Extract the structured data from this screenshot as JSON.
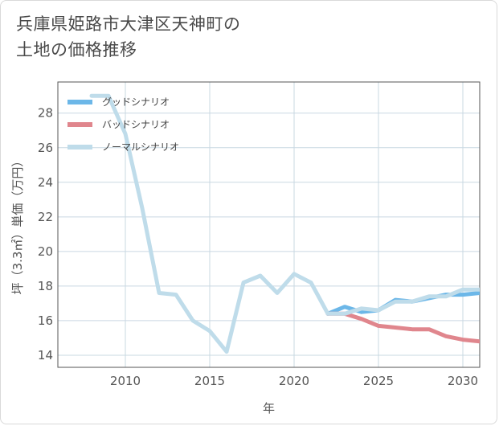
{
  "title_line1": "兵庫県姫路市大津区天神町の",
  "title_line2": "土地の価格推移",
  "chart_data": {
    "type": "line",
    "title": "兵庫県姫路市大津区天神町の土地の価格推移",
    "xlabel": "年",
    "ylabel": "坪（3.3㎡）単価（万円）",
    "xlim": [
      2006,
      2031
    ],
    "ylim": [
      13.3,
      29.8
    ],
    "xticks": [
      2010,
      2015,
      2020,
      2025,
      2030
    ],
    "yticks": [
      14,
      16,
      18,
      20,
      22,
      24,
      26,
      28
    ],
    "legend_position": "top-left",
    "series": [
      {
        "name": "グッドシナリオ",
        "color": "#6cb7e8",
        "x": [
          2022,
          2023,
          2024,
          2025,
          2026,
          2027,
          2028,
          2029,
          2030,
          2031
        ],
        "values": [
          16.4,
          16.8,
          16.5,
          16.6,
          17.2,
          17.1,
          17.3,
          17.5,
          17.5,
          17.6
        ]
      },
      {
        "name": "バッドシナリオ",
        "color": "#e0868d",
        "x": [
          2022,
          2023,
          2024,
          2025,
          2026,
          2027,
          2028,
          2029,
          2030,
          2031
        ],
        "values": [
          16.4,
          16.4,
          16.1,
          15.7,
          15.6,
          15.5,
          15.5,
          15.1,
          14.9,
          14.8
        ]
      },
      {
        "name": "ノーマルシナリオ",
        "color": "#bfdcea",
        "x": [
          2008,
          2009,
          2010,
          2011,
          2012,
          2013,
          2014,
          2015,
          2016,
          2017,
          2018,
          2019,
          2020,
          2021,
          2022,
          2023,
          2024,
          2025,
          2026,
          2027,
          2028,
          2029,
          2030,
          2031
        ],
        "values": [
          29.0,
          29.0,
          26.8,
          22.5,
          17.6,
          17.5,
          16.0,
          15.4,
          14.2,
          18.2,
          18.6,
          17.6,
          18.7,
          18.2,
          16.4,
          16.4,
          16.7,
          16.6,
          17.1,
          17.1,
          17.4,
          17.4,
          17.8,
          17.8
        ]
      }
    ]
  }
}
